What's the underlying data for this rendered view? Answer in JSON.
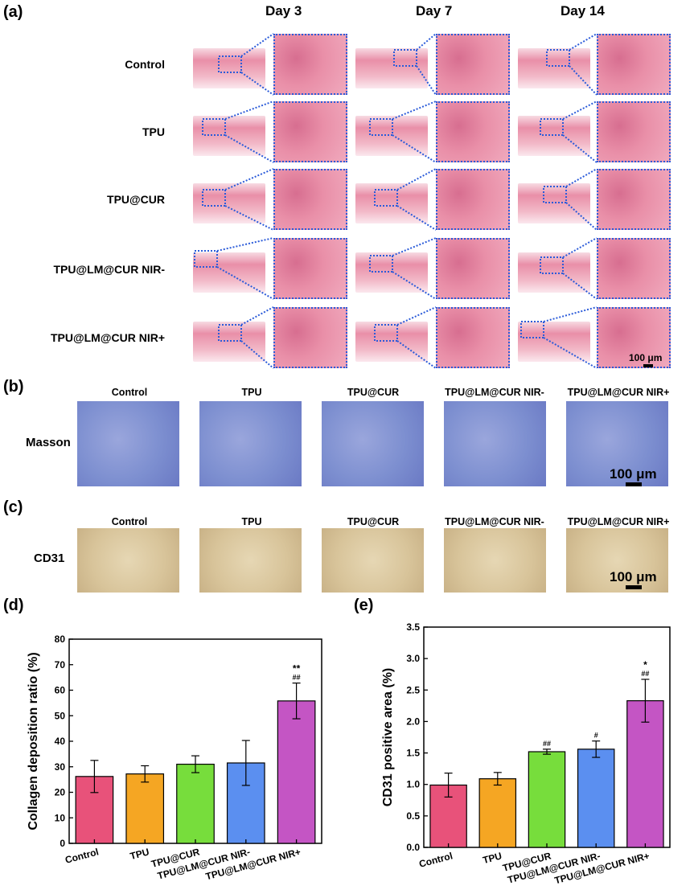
{
  "panel_labels": {
    "a": "(a)",
    "b": "(b)",
    "c": "(c)",
    "d": "(d)",
    "e": "(e)"
  },
  "panel_a": {
    "days": [
      "Day 3",
      "Day 7",
      "Day 14"
    ],
    "rows": [
      "Control",
      "TPU",
      "TPU@CUR",
      "TPU@LM@CUR NIR-",
      "TPU@LM@CUR NIR+"
    ],
    "scale_bar": "100 μm"
  },
  "panel_b": {
    "stain": "Masson",
    "groups": [
      "Control",
      "TPU",
      "TPU@CUR",
      "TPU@LM@CUR NIR-",
      "TPU@LM@CUR NIR+"
    ],
    "scale_bar": "100 μm"
  },
  "panel_c": {
    "stain": "CD31",
    "groups": [
      "Control",
      "TPU",
      "TPU@CUR",
      "TPU@LM@CUR NIR-",
      "TPU@LM@CUR NIR+"
    ],
    "scale_bar": "100 μm"
  },
  "colors": {
    "Control": "#e8527a",
    "TPU": "#f5a623",
    "TPU@CUR": "#77dd3c",
    "TPU@LM@CUR NIR-": "#5b8ff0",
    "TPU@LM@CUR NIR+": "#c455c4",
    "zoom_border": "#2b5bd9",
    "he_tissue": "#e98fa8",
    "masson_tissue": "#7d8fd0",
    "cd31_tissue": "#d8c49a"
  },
  "chart_data": [
    {
      "type": "bar",
      "panel": "(d)",
      "categories": [
        "Control",
        "TPU",
        "TPU@CUR",
        "TPU@LM@CUR NIR-",
        "TPU@LM@CUR NIR+"
      ],
      "values": [
        26.2,
        27.2,
        31.0,
        31.5,
        55.8
      ],
      "errors": [
        6.3,
        3.2,
        3.3,
        8.8,
        7.0
      ],
      "annotations": [
        "",
        "",
        "",
        "",
        "**\n##"
      ],
      "ylabel": "Collagen deposition ratio (%)",
      "ylim": [
        0,
        80
      ],
      "yticks": [
        0,
        10,
        20,
        30,
        40,
        50,
        60,
        70,
        80
      ],
      "grid": false
    },
    {
      "type": "bar",
      "panel": "(e)",
      "categories": [
        "Control",
        "TPU",
        "TPU@CUR",
        "TPU@LM@CUR NIR-",
        "TPU@LM@CUR NIR+"
      ],
      "values": [
        0.99,
        1.09,
        1.52,
        1.56,
        2.33
      ],
      "errors": [
        0.19,
        0.1,
        0.04,
        0.13,
        0.34
      ],
      "annotations": [
        "",
        "",
        "##",
        "#",
        "*\n##"
      ],
      "ylabel": "CD31 positive area (%)",
      "ylim": [
        0,
        3.5
      ],
      "yticks": [
        0.0,
        0.5,
        1.0,
        1.5,
        2.0,
        2.5,
        3.0,
        3.5
      ],
      "grid": false
    }
  ]
}
